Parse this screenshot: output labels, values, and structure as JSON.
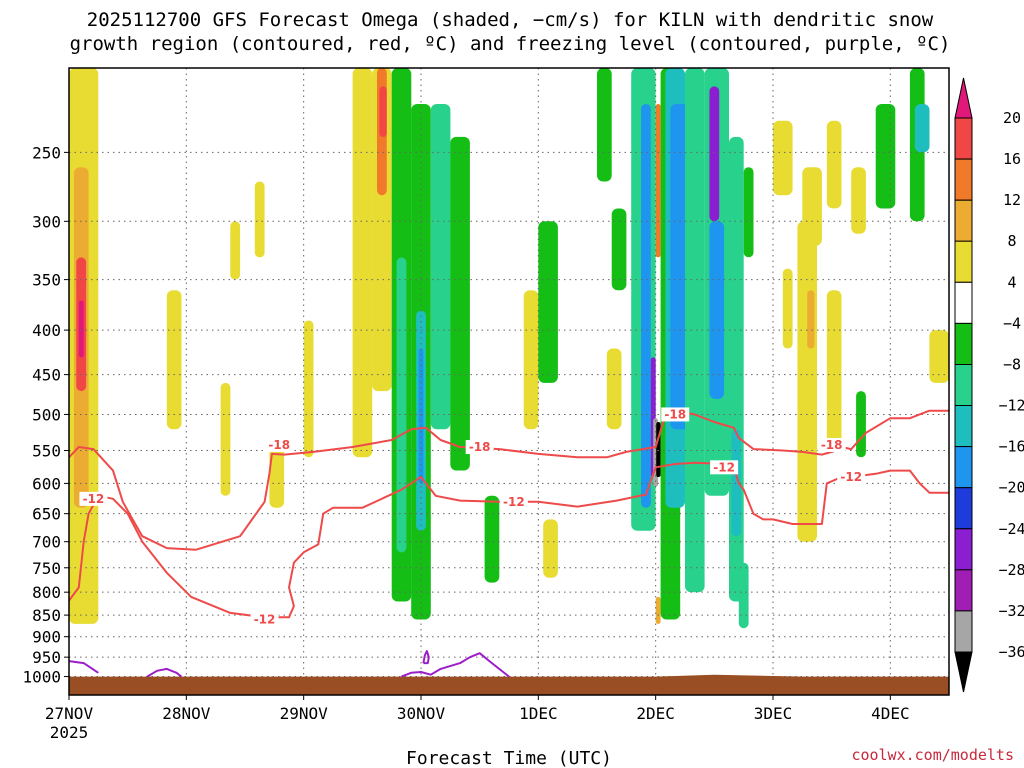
{
  "header": {
    "title_line1": "2025112700 GFS Forecast Omega (shaded, −cm/s) for KILN with dendritic snow",
    "title_line2": "growth region (contoured, red, ºC) and freezing level (contoured, purple, ºC)"
  },
  "footer": {
    "credit": "coolwx.com/modelts"
  },
  "colors": {
    "temp_contour": "#ef4a4a",
    "freezing_contour": "#9c1ec8",
    "ground": "#9a4e24",
    "grid": "#666666"
  },
  "chart_data": {
    "type": "heatmap",
    "title": "2025112700 GFS Forecast Omega (shaded, −cm/s) for KILN with dendritic snow growth region (contoured, red, ºC) and freezing level (contoured, purple, ºC)",
    "xlabel": "Forecast Time (UTC)",
    "ylabel": "",
    "x_ticks": [
      {
        "hour": 0,
        "label": "27NOV",
        "sublabel": "2025"
      },
      {
        "hour": 24,
        "label": "28NOV"
      },
      {
        "hour": 48,
        "label": "29NOV"
      },
      {
        "hour": 72,
        "label": "30NOV"
      },
      {
        "hour": 96,
        "label": "1DEC"
      },
      {
        "hour": 120,
        "label": "2DEC"
      },
      {
        "hour": 144,
        "label": "3DEC"
      },
      {
        "hour": 168,
        "label": "4DEC"
      }
    ],
    "xlim_hours": [
      0,
      180
    ],
    "y_scale": "log-pressure",
    "ylim_hpa": [
      1050,
      200
    ],
    "y_ticks_hpa": [
      250,
      300,
      350,
      400,
      450,
      500,
      550,
      600,
      650,
      700,
      750,
      800,
      850,
      900,
      950,
      1000
    ],
    "grid": true,
    "colorbar": {
      "ticks": [
        20,
        16,
        12,
        8,
        4,
        -4,
        -8,
        -12,
        -16,
        -20,
        -24,
        -28,
        -32,
        -36
      ],
      "bins": [
        {
          "range": [
            20,
            99
          ],
          "color": "#e0187a"
        },
        {
          "range": [
            16,
            20
          ],
          "color": "#f04646"
        },
        {
          "range": [
            12,
            16
          ],
          "color": "#f07a2a"
        },
        {
          "range": [
            8,
            12
          ],
          "color": "#ecac32"
        },
        {
          "range": [
            4,
            8
          ],
          "color": "#e8dc32"
        },
        {
          "range": [
            -4,
            4
          ],
          "color": "#ffffff"
        },
        {
          "range": [
            -8,
            -4
          ],
          "color": "#14be14"
        },
        {
          "range": [
            -12,
            -8
          ],
          "color": "#28d28c"
        },
        {
          "range": [
            -16,
            -12
          ],
          "color": "#1ebebe"
        },
        {
          "range": [
            -20,
            -16
          ],
          "color": "#1e96f0"
        },
        {
          "range": [
            -24,
            -20
          ],
          "color": "#1e3cdc"
        },
        {
          "range": [
            -28,
            -24
          ],
          "color": "#8c1ed2"
        },
        {
          "range": [
            -32,
            -28
          ],
          "color": "#a01eb4"
        },
        {
          "range": [
            -36,
            -32
          ],
          "color": "#a6a6a6"
        },
        {
          "range": [
            -99,
            -36
          ],
          "color": "#000000"
        }
      ]
    },
    "omega_features": [
      {
        "t0": 0,
        "t1": 6,
        "p_top": 200,
        "p_bot": 870,
        "value": 6
      },
      {
        "t0": 1,
        "t1": 4,
        "p_top": 260,
        "p_bot": 640,
        "value": 10
      },
      {
        "t0": 1.5,
        "t1": 3.5,
        "p_top": 330,
        "p_bot": 470,
        "value": 18
      },
      {
        "t0": 2,
        "t1": 3,
        "p_top": 370,
        "p_bot": 430,
        "value": 22
      },
      {
        "t0": 20,
        "t1": 23,
        "p_top": 360,
        "p_bot": 520,
        "value": 5
      },
      {
        "t0": 31,
        "t1": 33,
        "p_top": 460,
        "p_bot": 620,
        "value": 5
      },
      {
        "t0": 33,
        "t1": 35,
        "p_top": 300,
        "p_bot": 350,
        "value": 5
      },
      {
        "t0": 38,
        "t1": 40,
        "p_top": 270,
        "p_bot": 330,
        "value": 5
      },
      {
        "t0": 41,
        "t1": 44,
        "p_top": 540,
        "p_bot": 640,
        "value": 5
      },
      {
        "t0": 48,
        "t1": 50,
        "p_top": 390,
        "p_bot": 560,
        "value": 5
      },
      {
        "t0": 58,
        "t1": 62,
        "p_top": 200,
        "p_bot": 560,
        "value": 6
      },
      {
        "t0": 62,
        "t1": 66,
        "p_top": 200,
        "p_bot": 470,
        "value": 7
      },
      {
        "t0": 63,
        "t1": 65,
        "p_top": 200,
        "p_bot": 280,
        "value": 12
      },
      {
        "t0": 63.5,
        "t1": 65,
        "p_top": 210,
        "p_bot": 240,
        "value": 16
      },
      {
        "t0": 66,
        "t1": 70,
        "p_top": 200,
        "p_bot": 820,
        "value": -6
      },
      {
        "t0": 67,
        "t1": 69,
        "p_top": 330,
        "p_bot": 720,
        "value": -10
      },
      {
        "t0": 70,
        "t1": 74,
        "p_top": 220,
        "p_bot": 860,
        "value": -7
      },
      {
        "t0": 71,
        "t1": 73,
        "p_top": 380,
        "p_bot": 680,
        "value": -14
      },
      {
        "t0": 71.5,
        "t1": 72.5,
        "p_top": 420,
        "p_bot": 600,
        "value": -18
      },
      {
        "t0": 74,
        "t1": 78,
        "p_top": 220,
        "p_bot": 520,
        "value": -10
      },
      {
        "t0": 78,
        "t1": 82,
        "p_top": 240,
        "p_bot": 580,
        "value": -6
      },
      {
        "t0": 85,
        "t1": 88,
        "p_top": 620,
        "p_bot": 780,
        "value": -6
      },
      {
        "t0": 93,
        "t1": 96,
        "p_top": 360,
        "p_bot": 520,
        "value": 5
      },
      {
        "t0": 96,
        "t1": 100,
        "p_top": 300,
        "p_bot": 460,
        "value": -6
      },
      {
        "t0": 97,
        "t1": 100,
        "p_top": 660,
        "p_bot": 770,
        "value": 5
      },
      {
        "t0": 108,
        "t1": 111,
        "p_top": 200,
        "p_bot": 270,
        "value": -5
      },
      {
        "t0": 111,
        "t1": 114,
        "p_top": 290,
        "p_bot": 360,
        "value": -6
      },
      {
        "t0": 110,
        "t1": 113,
        "p_top": 420,
        "p_bot": 520,
        "value": 5
      },
      {
        "t0": 115,
        "t1": 120,
        "p_top": 200,
        "p_bot": 680,
        "value": -10
      },
      {
        "t0": 117,
        "t1": 119,
        "p_top": 220,
        "p_bot": 640,
        "value": -17
      },
      {
        "t0": 119,
        "t1": 120,
        "p_top": 430,
        "p_bot": 590,
        "value": -26
      },
      {
        "t0": 119.5,
        "t1": 120.5,
        "p_top": 505,
        "p_bot": 605,
        "value": -34
      },
      {
        "t0": 120,
        "t1": 121,
        "p_top": 220,
        "p_bot": 330,
        "value": 14
      },
      {
        "t0": 120,
        "t1": 121,
        "p_top": 810,
        "p_bot": 870,
        "value": 9
      },
      {
        "t0": 120.1,
        "t1": 121,
        "p_top": 510,
        "p_bot": 590,
        "value": -40
      },
      {
        "t0": 121,
        "t1": 125,
        "p_top": 200,
        "p_bot": 860,
        "value": -8
      },
      {
        "t0": 122,
        "t1": 126,
        "p_top": 200,
        "p_bot": 640,
        "value": -14
      },
      {
        "t0": 123,
        "t1": 130,
        "p_top": 220,
        "p_bot": 520,
        "value": -18
      },
      {
        "t0": 126,
        "t1": 130,
        "p_top": 200,
        "p_bot": 800,
        "value": -10
      },
      {
        "t0": 130,
        "t1": 135,
        "p_top": 200,
        "p_bot": 620,
        "value": -12
      },
      {
        "t0": 131,
        "t1": 133,
        "p_top": 210,
        "p_bot": 300,
        "value": -26
      },
      {
        "t0": 131,
        "t1": 134,
        "p_top": 300,
        "p_bot": 480,
        "value": -20
      },
      {
        "t0": 135,
        "t1": 138,
        "p_top": 240,
        "p_bot": 820,
        "value": -9
      },
      {
        "t0": 135.5,
        "t1": 137.5,
        "p_top": 520,
        "p_bot": 690,
        "value": -15
      },
      {
        "t0": 137,
        "t1": 139,
        "p_top": 740,
        "p_bot": 880,
        "value": -10
      },
      {
        "t0": 138,
        "t1": 140,
        "p_top": 260,
        "p_bot": 330,
        "value": -6
      },
      {
        "t0": 144,
        "t1": 148,
        "p_top": 230,
        "p_bot": 280,
        "value": 5
      },
      {
        "t0": 146,
        "t1": 148,
        "p_top": 340,
        "p_bot": 420,
        "value": 5
      },
      {
        "t0": 150,
        "t1": 154,
        "p_top": 260,
        "p_bot": 320,
        "value": 6
      },
      {
        "t0": 155,
        "t1": 158,
        "p_top": 230,
        "p_bot": 290,
        "value": 5
      },
      {
        "t0": 149,
        "t1": 153,
        "p_top": 300,
        "p_bot": 700,
        "value": 6
      },
      {
        "t0": 151,
        "t1": 152.5,
        "p_top": 360,
        "p_bot": 420,
        "value": 10
      },
      {
        "t0": 155,
        "t1": 158,
        "p_top": 360,
        "p_bot": 540,
        "value": 5
      },
      {
        "t0": 160,
        "t1": 163,
        "p_top": 260,
        "p_bot": 310,
        "value": 5
      },
      {
        "t0": 165,
        "t1": 169,
        "p_top": 220,
        "p_bot": 290,
        "value": -6
      },
      {
        "t0": 172,
        "t1": 175,
        "p_top": 200,
        "p_bot": 300,
        "value": -6
      },
      {
        "t0": 173,
        "t1": 176,
        "p_top": 220,
        "p_bot": 250,
        "value": -14
      },
      {
        "t0": 176,
        "t1": 180,
        "p_top": 400,
        "p_bot": 460,
        "value": 5
      },
      {
        "t0": 161,
        "t1": 163,
        "p_top": 470,
        "p_bot": 560,
        "value": -5
      }
    ],
    "contours": [
      {
        "level": -18,
        "label": "-18",
        "color": "temp_contour",
        "points": [
          [
            0,
            560
          ],
          [
            2,
            545
          ],
          [
            5,
            548
          ],
          [
            9,
            580
          ],
          [
            11,
            630
          ],
          [
            13,
            660
          ],
          [
            15,
            690
          ],
          [
            20,
            712
          ],
          [
            26,
            715
          ],
          [
            35,
            690
          ],
          [
            40,
            630
          ],
          [
            41,
            585
          ],
          [
            41.5,
            555
          ],
          [
            44,
            556
          ],
          [
            50,
            552
          ],
          [
            58,
            545
          ],
          [
            66,
            535
          ],
          [
            70,
            520
          ],
          [
            73,
            518
          ],
          [
            76,
            535
          ],
          [
            80,
            545
          ],
          [
            88,
            548
          ],
          [
            96,
            555
          ],
          [
            104,
            560
          ],
          [
            110,
            560
          ],
          [
            114,
            552
          ],
          [
            120,
            545
          ],
          [
            122,
            500
          ],
          [
            124,
            495
          ],
          [
            128,
            500
          ],
          [
            132,
            510
          ],
          [
            136,
            518
          ],
          [
            137,
            532
          ],
          [
            140,
            548
          ],
          [
            146,
            550
          ],
          [
            150,
            552
          ],
          [
            154,
            556
          ],
          [
            157,
            550
          ],
          [
            158,
            545
          ],
          [
            160,
            548
          ],
          [
            163,
            525
          ],
          [
            168,
            505
          ],
          [
            172,
            505
          ],
          [
            176,
            495
          ],
          [
            180,
            495
          ]
        ],
        "label_points": [
          [
            43,
            542
          ],
          [
            84,
            545
          ],
          [
            124,
            500
          ],
          [
            156,
            542
          ]
        ]
      },
      {
        "level": -12,
        "label": "-12",
        "color": "temp_contour",
        "points": [
          [
            0,
            818
          ],
          [
            2,
            790
          ],
          [
            3,
            700
          ],
          [
            4,
            650
          ],
          [
            6,
            620
          ],
          [
            9,
            625
          ],
          [
            12,
            650
          ],
          [
            15,
            700
          ],
          [
            20,
            760
          ],
          [
            25,
            810
          ],
          [
            33,
            845
          ],
          [
            40,
            855
          ],
          [
            45,
            855
          ],
          [
            46,
            830
          ],
          [
            45,
            790
          ],
          [
            46,
            740
          ],
          [
            48,
            720
          ],
          [
            51,
            705
          ],
          [
            52,
            650
          ],
          [
            54,
            640
          ],
          [
            60,
            640
          ],
          [
            68,
            610
          ],
          [
            72,
            590
          ],
          [
            75,
            620
          ],
          [
            80,
            628
          ],
          [
            88,
            630
          ],
          [
            96,
            630
          ],
          [
            104,
            638
          ],
          [
            112,
            628
          ],
          [
            118,
            618
          ],
          [
            120,
            575
          ],
          [
            124,
            570
          ],
          [
            128,
            568
          ],
          [
            134,
            570
          ],
          [
            136,
            575
          ],
          [
            137,
            600
          ],
          [
            138,
            610
          ],
          [
            140,
            650
          ],
          [
            142,
            660
          ],
          [
            144,
            660
          ],
          [
            148,
            668
          ],
          [
            154,
            668
          ],
          [
            155,
            600
          ],
          [
            158,
            590
          ],
          [
            160,
            590
          ],
          [
            165,
            585
          ],
          [
            168,
            580
          ],
          [
            172,
            580
          ],
          [
            174,
            600
          ],
          [
            176,
            615
          ],
          [
            180,
            615
          ]
        ],
        "label_points": [
          [
            5,
            625
          ],
          [
            40,
            860
          ],
          [
            91,
            630
          ],
          [
            134,
            575
          ],
          [
            160,
            590
          ]
        ]
      },
      {
        "level": 0,
        "label": "",
        "color": "freezing_contour",
        "points": [
          [
            0,
            960
          ],
          [
            3,
            965
          ],
          [
            6,
            990
          ]
        ],
        "label_points": []
      },
      {
        "level": 0,
        "label": "",
        "color": "freezing_contour",
        "points": [
          [
            16,
            1000
          ],
          [
            18,
            985
          ],
          [
            20,
            980
          ],
          [
            22,
            990
          ],
          [
            23,
            1000
          ]
        ],
        "label_points": []
      },
      {
        "level": 0,
        "label": "",
        "color": "freezing_contour",
        "points": [
          [
            68,
            1000
          ],
          [
            70,
            990
          ],
          [
            72,
            988
          ],
          [
            74,
            995
          ],
          [
            76,
            980
          ],
          [
            80,
            965
          ],
          [
            82,
            950
          ],
          [
            84,
            940
          ],
          [
            86,
            960
          ],
          [
            88,
            980
          ],
          [
            90,
            1000
          ]
        ],
        "label_points": []
      },
      {
        "level": 0,
        "label": "",
        "color": "freezing_contour",
        "points": [
          [
            72.5,
            965
          ],
          [
            72.8,
            945
          ],
          [
            73.2,
            935
          ],
          [
            73.6,
            950
          ],
          [
            73.4,
            965
          ],
          [
            72.5,
            965
          ]
        ],
        "label_points": []
      }
    ],
    "surface_pressure_hpa": [
      [
        0,
        1000
      ],
      [
        60,
        1000
      ],
      [
        120,
        1000
      ],
      [
        132,
        995
      ],
      [
        150,
        1000
      ],
      [
        180,
        1000
      ]
    ]
  }
}
